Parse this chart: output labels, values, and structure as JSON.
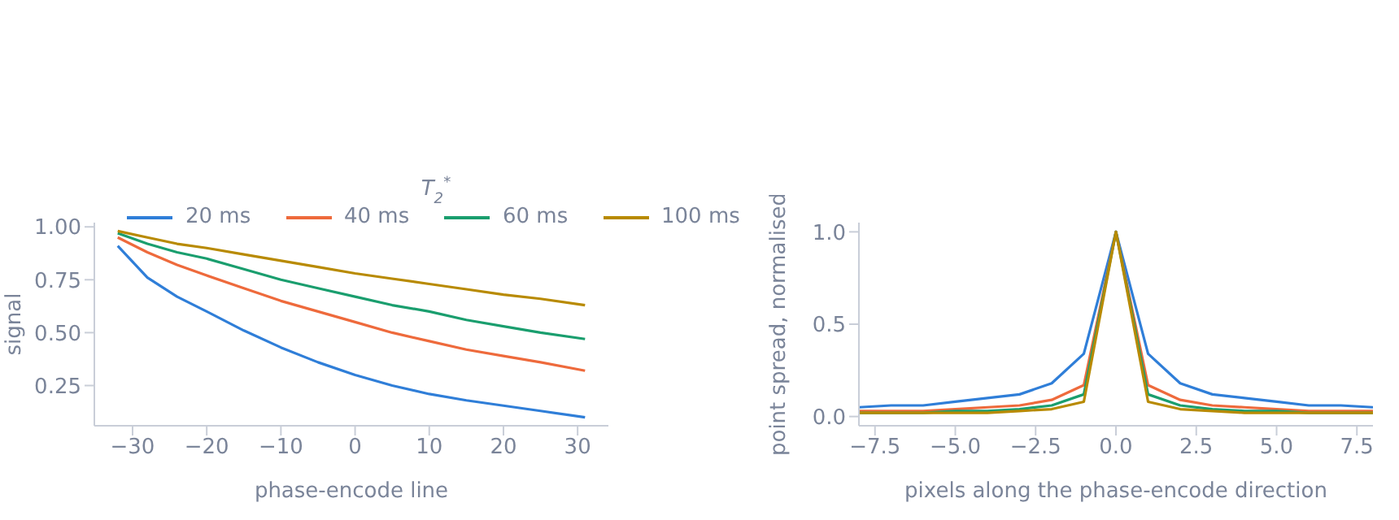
{
  "chart_data": [
    {
      "type": "line",
      "x": [
        -32,
        -28,
        -24,
        -20,
        -15,
        -10,
        -5,
        0,
        5,
        10,
        15,
        20,
        25,
        31
      ],
      "series": [
        {
          "name": "20 ms",
          "color": "#2f7ed8",
          "values": [
            0.91,
            0.76,
            0.67,
            0.6,
            0.51,
            0.43,
            0.36,
            0.3,
            0.25,
            0.21,
            0.18,
            0.155,
            0.13,
            0.1
          ]
        },
        {
          "name": "40 ms",
          "color": "#ee6a3c",
          "values": [
            0.95,
            0.88,
            0.82,
            0.77,
            0.71,
            0.65,
            0.6,
            0.55,
            0.5,
            0.46,
            0.42,
            0.39,
            0.36,
            0.32
          ]
        },
        {
          "name": "60 ms",
          "color": "#1a9e6e",
          "values": [
            0.97,
            0.92,
            0.88,
            0.85,
            0.8,
            0.75,
            0.71,
            0.67,
            0.63,
            0.6,
            0.56,
            0.53,
            0.5,
            0.47
          ]
        },
        {
          "name": "100 ms",
          "color": "#b88a00",
          "values": [
            0.98,
            0.95,
            0.92,
            0.9,
            0.87,
            0.84,
            0.81,
            0.78,
            0.755,
            0.73,
            0.705,
            0.68,
            0.66,
            0.63
          ]
        }
      ],
      "xlim": [
        -35.15,
        34.15
      ],
      "ylim": [
        0.06,
        1.02
      ],
      "xticks": [
        {
          "value": -30,
          "label": "−30"
        },
        {
          "value": -20,
          "label": "−20"
        },
        {
          "value": -10,
          "label": "−10"
        },
        {
          "value": 0,
          "label": "0"
        },
        {
          "value": 10,
          "label": "10"
        },
        {
          "value": 20,
          "label": "20"
        },
        {
          "value": 30,
          "label": "30"
        }
      ],
      "yticks": [
        {
          "value": 0.25,
          "label": "0.25"
        },
        {
          "value": 0.5,
          "label": "0.50"
        },
        {
          "value": 0.75,
          "label": "0.75"
        },
        {
          "value": 1,
          "label": "1.00"
        }
      ],
      "xlabel": "phase-encode line",
      "ylabel": "signal",
      "legend": "top",
      "legend_title": "T$_{2}$$^{*}$",
      "marker": "none",
      "line_style": "solid"
    },
    {
      "type": "line",
      "x": [
        -8,
        -7,
        -6,
        -5,
        -4,
        -3,
        -2,
        -1,
        0,
        1,
        2,
        3,
        4,
        5,
        6,
        7,
        8
      ],
      "series": [
        {
          "color": "#2f7ed8",
          "values": [
            0.05,
            0.06,
            0.06,
            0.08,
            0.1,
            0.12,
            0.18,
            0.34,
            1,
            0.34,
            0.18,
            0.12,
            0.1,
            0.08,
            0.06,
            0.06,
            0.05
          ]
        },
        {
          "color": "#ee6a3c",
          "values": [
            0.03,
            0.03,
            0.03,
            0.04,
            0.05,
            0.06,
            0.09,
            0.17,
            1,
            0.17,
            0.09,
            0.06,
            0.05,
            0.04,
            0.03,
            0.03,
            0.03
          ]
        },
        {
          "color": "#1a9e6e",
          "values": [
            0.02,
            0.02,
            0.02,
            0.03,
            0.03,
            0.04,
            0.06,
            0.12,
            1,
            0.12,
            0.06,
            0.04,
            0.03,
            0.03,
            0.02,
            0.02,
            0.02
          ]
        },
        {
          "color": "#b88a00",
          "values": [
            0.02,
            0.02,
            0.02,
            0.02,
            0.02,
            0.03,
            0.04,
            0.08,
            1,
            0.08,
            0.04,
            0.03,
            0.02,
            0.02,
            0.02,
            0.02,
            0.02
          ]
        }
      ],
      "xlim": [
        -8,
        8
      ],
      "ylim": [
        -0.05,
        1.05
      ],
      "xticks": [
        {
          "value": -7.5,
          "label": "−7.5"
        },
        {
          "value": -5,
          "label": "−5.0"
        },
        {
          "value": -2.5,
          "label": "−2.5"
        },
        {
          "value": 0,
          "label": "0.0"
        },
        {
          "value": 2.5,
          "label": "2.5"
        },
        {
          "value": 5,
          "label": "5.0"
        },
        {
          "value": 7.5,
          "label": "7.5"
        }
      ],
      "yticks": [
        {
          "value": 0,
          "label": "0.0"
        },
        {
          "value": 0.5,
          "label": "0.5"
        },
        {
          "value": 1,
          "label": "1.0"
        }
      ],
      "xlabel": "pixels along the phase-encode direction",
      "ylabel": "point spread, normalised",
      "marker": "none",
      "line_style": "solid"
    }
  ]
}
